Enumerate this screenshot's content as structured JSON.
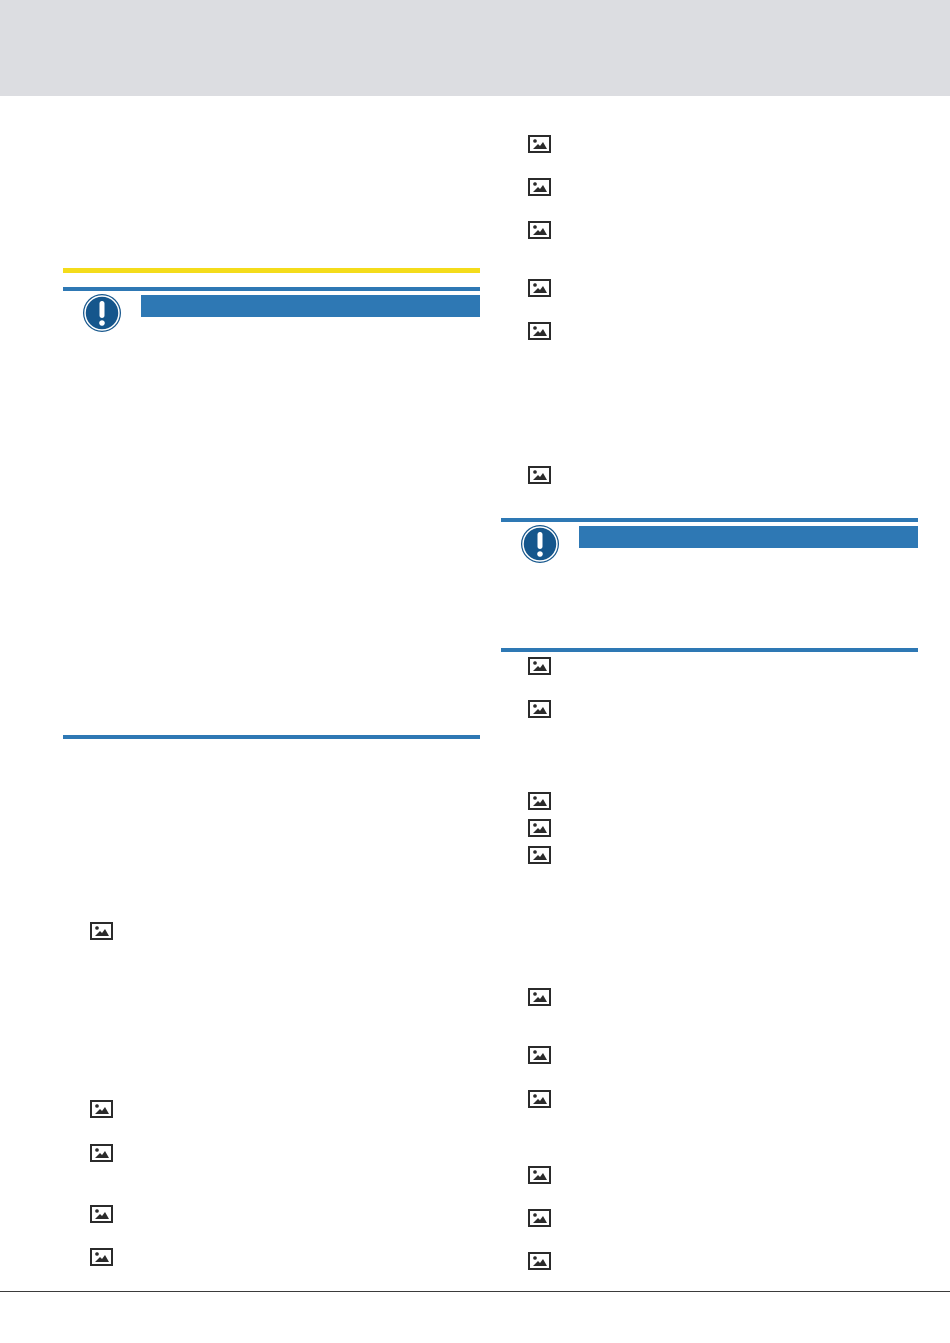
{
  "page": {
    "icons": {
      "image_placeholder": "image-placeholder-icon",
      "notice": "exclamation-circle-icon"
    },
    "colors": {
      "header_band": "#dcdde1",
      "accent_blue": "#2e78b4",
      "warning_yellow": "#f4dc1b",
      "icon_outline": "#2b2b2b",
      "notice_icon": "#15568c"
    }
  }
}
